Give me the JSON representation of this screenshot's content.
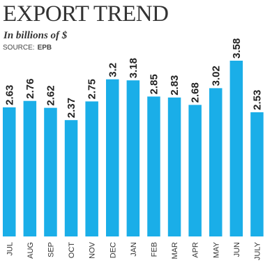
{
  "header": {
    "title": "EXPORT TREND",
    "subtitle": "In billions of $",
    "source_label": "SOURCE:",
    "source_value": "EPB"
  },
  "chart_data": {
    "type": "bar",
    "title": "EXPORT TREND",
    "subtitle": "In billions of $",
    "categories": [
      "JUL",
      "AUG",
      "SEP",
      "OCT",
      "NOV",
      "DEC",
      "JAN",
      "FEB",
      "MAR",
      "APR",
      "MAY",
      "JUN",
      "JULY"
    ],
    "values": [
      2.63,
      2.76,
      2.62,
      2.37,
      2.75,
      3.2,
      3.18,
      2.85,
      2.83,
      2.68,
      3.02,
      3.58,
      2.53
    ],
    "value_labels": [
      "2.63",
      "2.76",
      "2.62",
      "2.37",
      "2.75",
      "3.2",
      "3.18",
      "2.85",
      "2.83",
      "2.68",
      "3.02",
      "3.58",
      "2.53"
    ],
    "xlabel": "",
    "ylabel": "",
    "ylim": [
      0,
      3.58
    ],
    "grid": false,
    "legend": "none",
    "bar_color": "#1aaee8"
  }
}
